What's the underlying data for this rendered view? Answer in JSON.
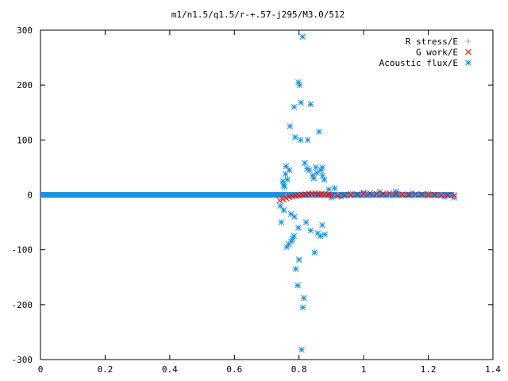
{
  "chart_data": {
    "type": "scatter",
    "title": "m1/n1.5/q1.5/r-+.57-j295/M3.0/512",
    "xlabel": "",
    "ylabel": "",
    "xlim": [
      0,
      1.4
    ],
    "ylim": [
      -300,
      300
    ],
    "x_ticks": [
      "0",
      "0.2",
      "0.4",
      "0.6",
      "0.8",
      "1",
      "1.2",
      "1.4"
    ],
    "y_ticks": [
      "300",
      "200",
      "100",
      "0",
      "-100",
      "-200",
      "-300"
    ],
    "grid": false,
    "legend_position": "top-right",
    "series": [
      {
        "name": "R stress/E",
        "marker": "plus",
        "color": "#a0a0a0",
        "x": [
          0.76,
          0.8,
          0.84,
          0.88,
          0.92,
          0.96,
          1.0,
          1.04,
          1.08,
          1.12,
          1.16,
          1.2,
          1.24,
          1.28
        ],
        "y": [
          -1,
          1,
          -1,
          2,
          1,
          0,
          1,
          2,
          1,
          1,
          0,
          1,
          0,
          0
        ]
      },
      {
        "name": "G work/E",
        "marker": "x",
        "color": "#ff0000",
        "x": [
          0.74,
          0.75,
          0.76,
          0.77,
          0.78,
          0.79,
          0.8,
          0.81,
          0.82,
          0.83,
          0.84,
          0.85,
          0.86,
          0.87,
          0.88,
          0.89,
          0.9,
          0.92,
          0.94,
          0.96,
          0.98,
          1.0,
          1.02,
          1.04,
          1.06,
          1.08,
          1.1,
          1.12,
          1.14,
          1.16,
          1.18,
          1.2,
          1.22,
          1.24,
          1.26,
          1.28
        ],
        "y": [
          -10,
          -8,
          -6,
          -4,
          -3,
          -2,
          -1,
          0,
          1,
          2,
          2,
          3,
          2,
          2,
          1,
          0,
          -1,
          -2,
          -1,
          0,
          1,
          2,
          3,
          2,
          2,
          3,
          2,
          1,
          0,
          1,
          1,
          0,
          0,
          -1,
          -1,
          -1
        ]
      },
      {
        "name": "Acoustic flux/E",
        "marker": "star",
        "color": "#1e90dc",
        "x": [
          0.811,
          0.798,
          0.802,
          0.806,
          0.785,
          0.836,
          0.772,
          0.862,
          0.788,
          0.805,
          0.827,
          0.818,
          0.76,
          0.77,
          0.758,
          0.872,
          0.75,
          0.752,
          0.755,
          0.764,
          0.825,
          0.832,
          0.842,
          0.855,
          0.868,
          0.873,
          0.878,
          0.846,
          0.852,
          0.892,
          0.91,
          0.742,
          0.753,
          0.775,
          0.786,
          0.822,
          0.872,
          0.88,
          0.866,
          0.858,
          0.836,
          0.798,
          0.784,
          0.78,
          0.776,
          0.768,
          0.762,
          0.745,
          0.8,
          0.79,
          0.848,
          0.812,
          0.796,
          0.815,
          0.808,
          0.901,
          0.93,
          0.96,
          1.0,
          1.05,
          1.1,
          1.15,
          1.2,
          1.25,
          1.28
        ],
        "y": [
          288,
          205,
          200,
          168,
          160,
          165,
          125,
          115,
          105,
          100,
          100,
          58,
          52,
          45,
          38,
          50,
          25,
          18,
          15,
          28,
          48,
          45,
          35,
          40,
          45,
          35,
          28,
          30,
          50,
          10,
          12,
          -20,
          -28,
          -35,
          -40,
          -50,
          -55,
          -72,
          -75,
          -70,
          -65,
          -60,
          -75,
          -80,
          -85,
          -90,
          -95,
          -50,
          -118,
          -135,
          -105,
          -205,
          -165,
          -188,
          -282,
          -5,
          -3,
          2,
          4,
          5,
          6,
          3,
          2,
          -3,
          -5
        ],
        "baseline": {
          "x_from": 0.0,
          "x_to": 1.28,
          "y": 0
        }
      }
    ]
  }
}
